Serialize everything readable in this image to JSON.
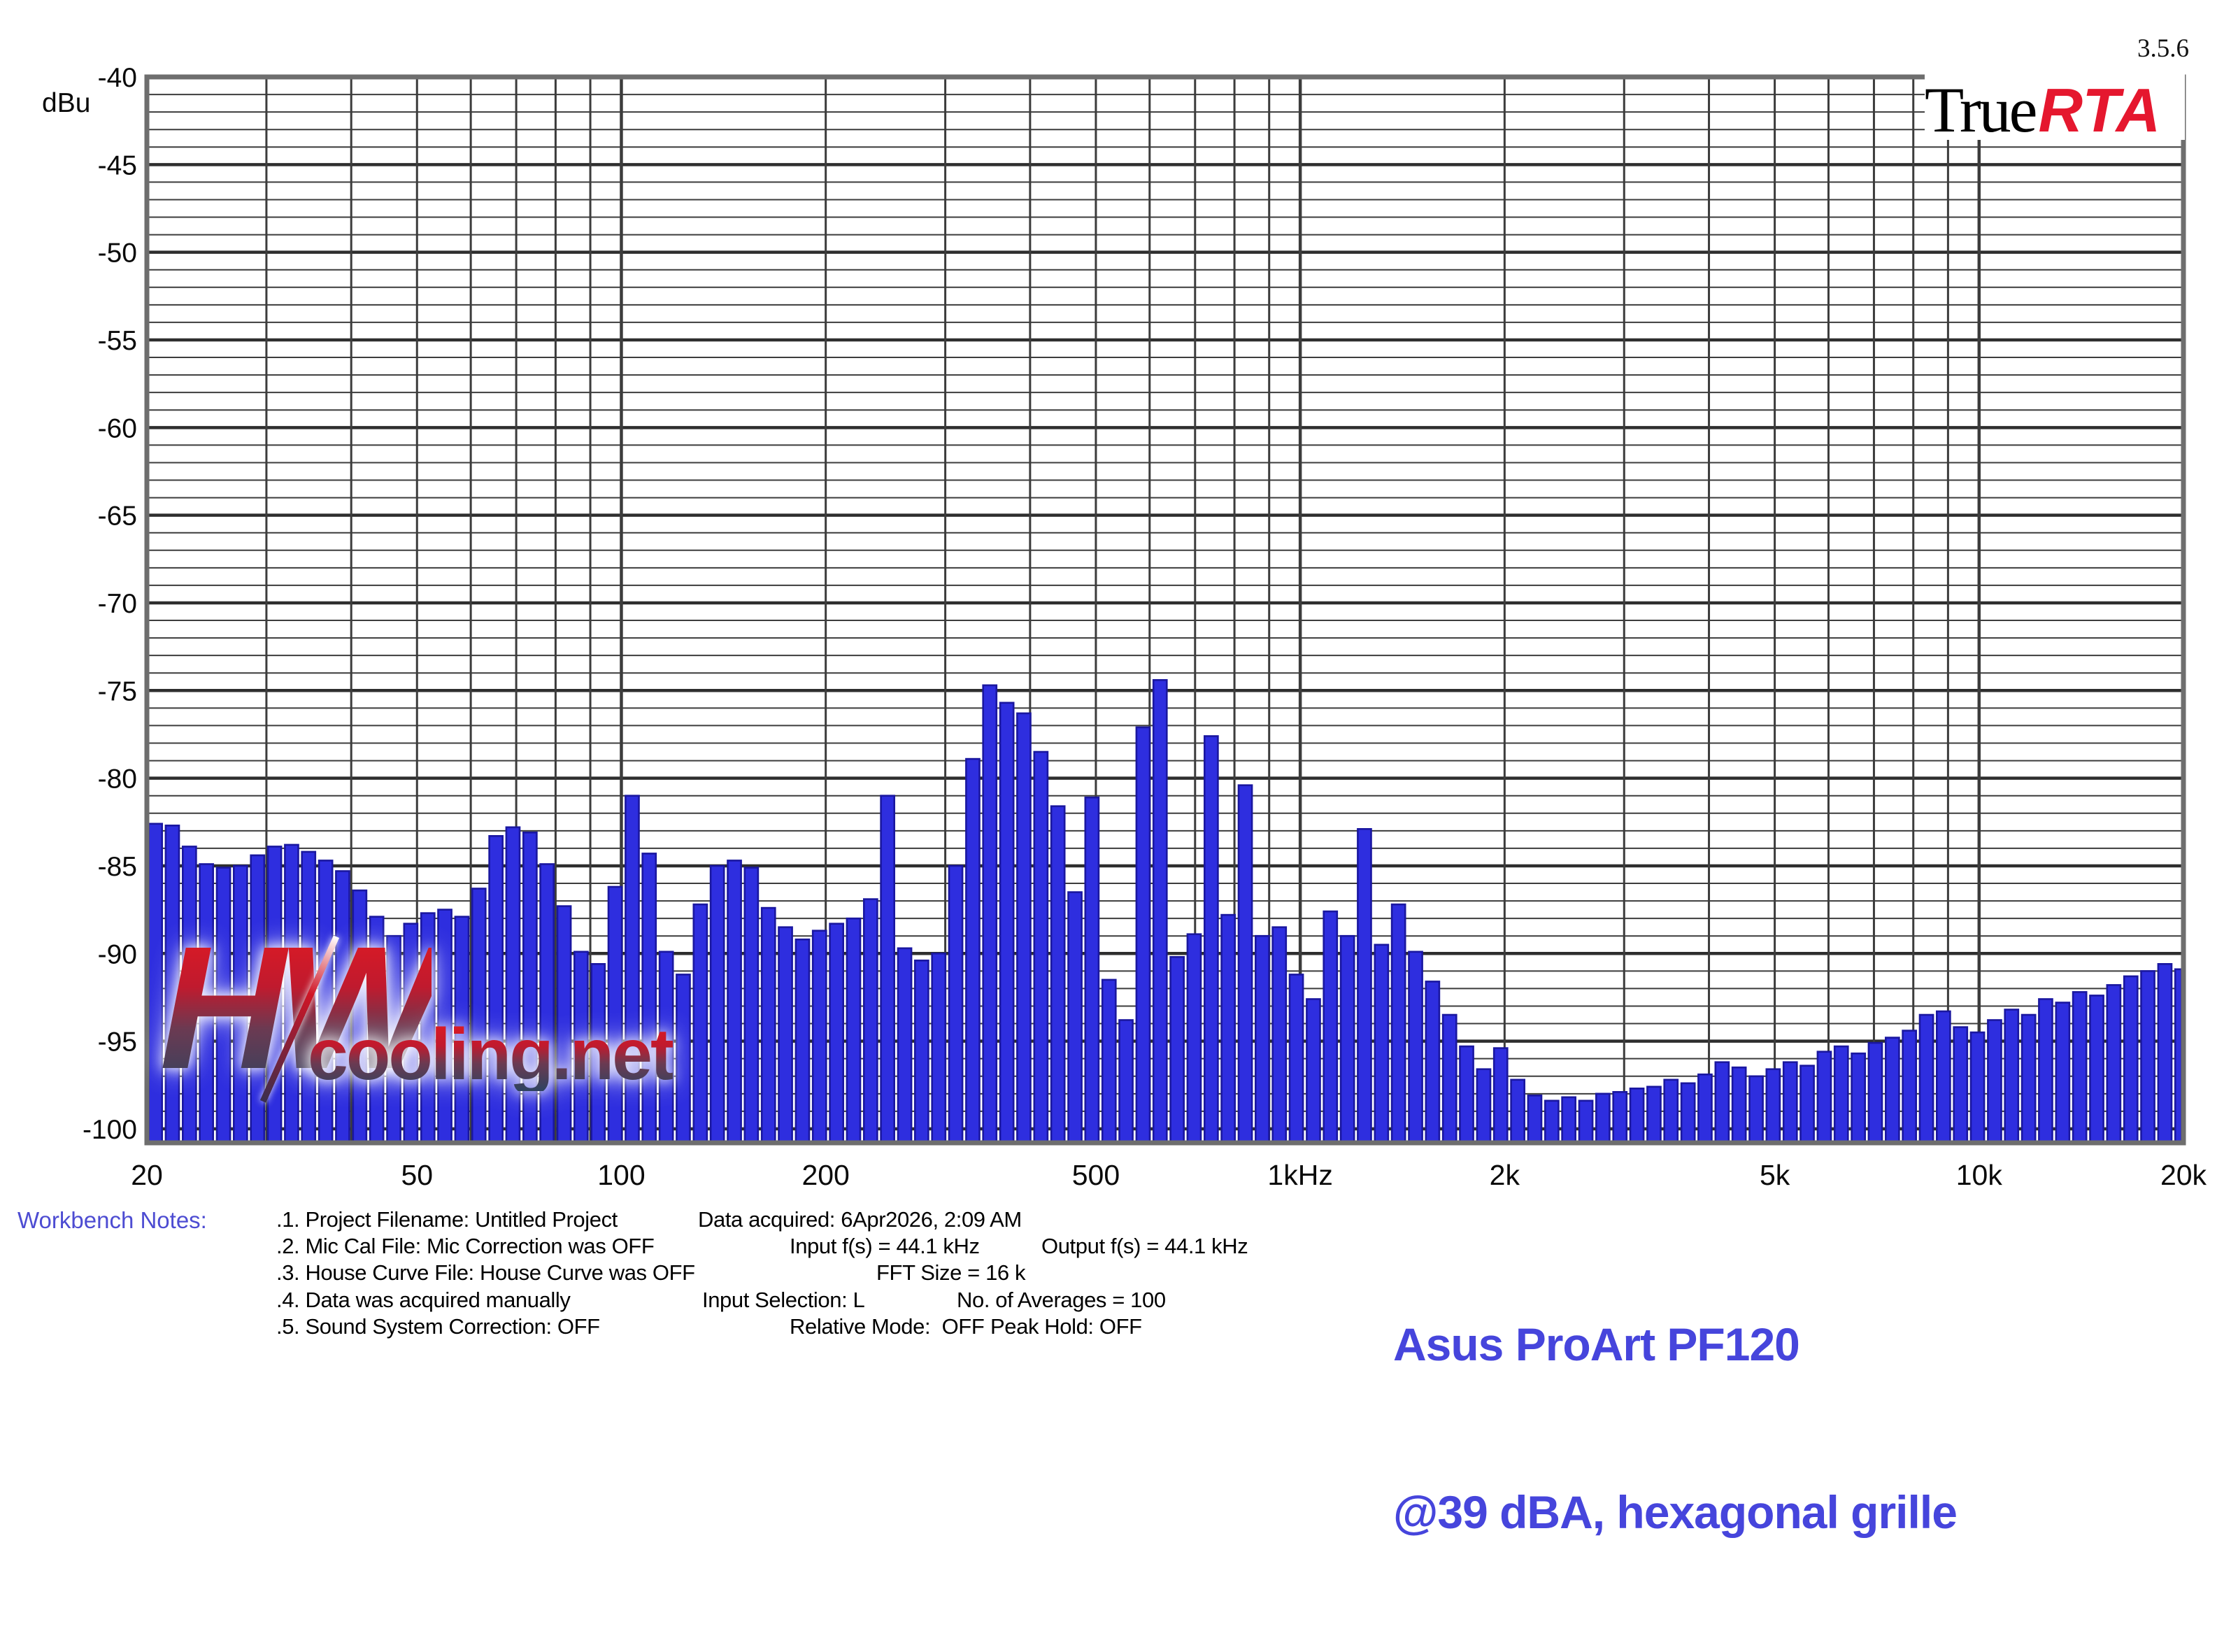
{
  "version_label": "3.5.6",
  "logo": {
    "true_part": "True",
    "rta_part": "RTA"
  },
  "watermark": {
    "monogram": "HW",
    "domain": "cooling.net"
  },
  "notes": {
    "heading": "Workbench Notes:",
    "rows": [
      {
        "a": ".1. Project Filename: Untitled Project",
        "b": "Data acquired: 6Apr2026, 2:09 AM",
        "c": ""
      },
      {
        "a": ".2. Mic Cal File: Mic Correction was OFF",
        "b": "Input f(s) = 44.1 kHz",
        "c": "Output f(s) = 44.1 kHz"
      },
      {
        "a": ".3. House Curve File: House Curve was OFF",
        "b": "FFT Size = 16 k",
        "c": ""
      },
      {
        "a": ".4. Data was acquired manually",
        "b": "Input Selection: L",
        "c": "No. of Averages = 100"
      },
      {
        "a": ".5. Sound System Correction: OFF",
        "b": "Relative Mode:  OFF",
        "c": "Peak Hold: OFF"
      }
    ]
  },
  "title": {
    "line1": "Asus ProArt PF120",
    "line2": "@39 dBA, hexagonal grille"
  },
  "chart_data": {
    "type": "bar",
    "title": "",
    "xlabel": "",
    "ylabel": "dBu",
    "x_scale": "log",
    "xlim": [
      20,
      20000
    ],
    "ylim": [
      -100.8,
      -40
    ],
    "grid": true,
    "legend": "none",
    "bars_per_octave": 12,
    "f_start": 20,
    "y_ticks": [
      -40,
      -45,
      -50,
      -55,
      -60,
      -65,
      -70,
      -75,
      -80,
      -85,
      -90,
      -95,
      -100
    ],
    "x_ticks": [
      {
        "f": 20,
        "label": "20"
      },
      {
        "f": 50,
        "label": "50"
      },
      {
        "f": 100,
        "label": "100"
      },
      {
        "f": 200,
        "label": "200"
      },
      {
        "f": 500,
        "label": "500"
      },
      {
        "f": 1000,
        "label": "1kHz"
      },
      {
        "f": 2000,
        "label": "2k"
      },
      {
        "f": 5000,
        "label": "5k"
      },
      {
        "f": 10000,
        "label": "10k"
      },
      {
        "f": 20000,
        "label": "20k"
      }
    ],
    "values_dbu": [
      -82.6,
      -82.7,
      -83.9,
      -84.9,
      -85.1,
      -85.0,
      -84.4,
      -83.9,
      -83.8,
      -84.2,
      -84.7,
      -85.3,
      -86.4,
      -87.9,
      -89.0,
      -88.3,
      -87.7,
      -87.5,
      -87.9,
      -86.3,
      -83.3,
      -82.8,
      -83.1,
      -84.9,
      -87.3,
      -89.9,
      -90.6,
      -86.2,
      -81.0,
      -84.3,
      -89.9,
      -91.2,
      -87.2,
      -85.0,
      -84.7,
      -85.1,
      -87.4,
      -88.5,
      -89.2,
      -88.7,
      -88.3,
      -88.0,
      -86.9,
      -81.0,
      -89.7,
      -90.4,
      -90.0,
      -85.0,
      -78.9,
      -74.7,
      -75.7,
      -76.3,
      -78.5,
      -81.6,
      -86.5,
      -81.1,
      -91.5,
      -93.8,
      -77.1,
      -74.4,
      -90.2,
      -88.9,
      -77.6,
      -87.8,
      -80.4,
      -89.0,
      -88.5,
      -91.2,
      -92.6,
      -87.6,
      -89.0,
      -82.9,
      -89.5,
      -87.2,
      -89.9,
      -91.6,
      -93.5,
      -95.3,
      -96.6,
      -95.4,
      -97.2,
      -98.1,
      -98.4,
      -98.2,
      -98.4,
      -98.0,
      -97.9,
      -97.7,
      -97.6,
      -97.2,
      -97.4,
      -96.9,
      -96.2,
      -96.5,
      -97.0,
      -96.6,
      -96.2,
      -96.4,
      -95.6,
      -95.3,
      -95.7,
      -95.1,
      -94.8,
      -94.4,
      -93.5,
      -93.3,
      -94.2,
      -94.5,
      -93.8,
      -93.2,
      -93.5,
      -92.6,
      -92.8,
      -92.2,
      -92.4,
      -91.8,
      -91.3,
      -91.0,
      -90.6,
      -90.9
    ],
    "bar_color": "#2E2EDF",
    "bar_edge": "#1A17A0",
    "grid_color": "#3C3C3C",
    "grid_major_color": "#2E2E2E",
    "border_color": "#6E6E6E",
    "label_color": "#0A0A0A"
  }
}
